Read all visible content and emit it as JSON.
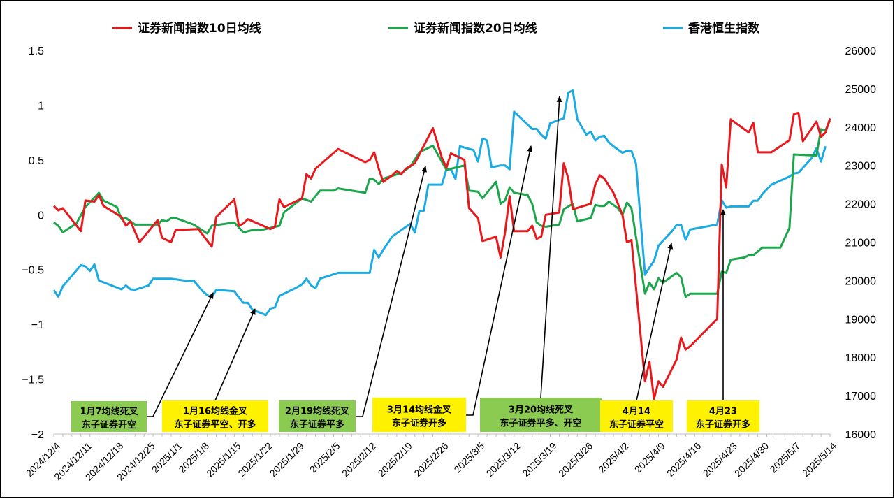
{
  "chart_data": {
    "type": "line",
    "title": "",
    "xlabel": "",
    "ylabel": "",
    "ylim": [
      -2,
      1.5
    ],
    "y2lim": [
      16000,
      26000
    ],
    "y_ticks": [
      "1.5",
      "1",
      "0.5",
      "0",
      "−0.5",
      "−1",
      "−1.5",
      "−2"
    ],
    "y2_ticks": [
      "26000",
      "25000",
      "24000",
      "23000",
      "22000",
      "21000",
      "20000",
      "19000",
      "18000",
      "17000",
      "16000"
    ],
    "x_ticks": [
      "2024/12/4",
      "2024/12/11",
      "2024/12/18",
      "2024/12/25",
      "2025/1/1",
      "2025/1/8",
      "2025/1/15",
      "2025/1/22",
      "2025/1/29",
      "2025/2/5",
      "2025/2/12",
      "2025/2/19",
      "2025/2/26",
      "2025/3/5",
      "2025/3/12",
      "2025/3/19",
      "2025/3/26",
      "2025/4/2",
      "2025/4/9",
      "2025/4/16",
      "2025/4/23",
      "2025/4/30",
      "2025/5/7",
      "2025/5/14"
    ],
    "grid": false,
    "legend_position": "top",
    "series": [
      {
        "name": "证券新闻指数10日均线",
        "axis": "left",
        "color": "#e8191c",
        "points": [
          [
            0,
            0.08
          ],
          [
            1,
            0.04
          ],
          [
            2,
            0.06
          ],
          [
            6,
            -0.15
          ],
          [
            7,
            0.13
          ],
          [
            9,
            0.12
          ],
          [
            10,
            0.18
          ],
          [
            11,
            0.08
          ],
          [
            15,
            -0.02
          ],
          [
            16,
            -0.1
          ],
          [
            17,
            -0.06
          ],
          [
            19,
            -0.25
          ],
          [
            23,
            -0.05
          ],
          [
            24,
            -0.21
          ],
          [
            26,
            -0.25
          ],
          [
            27,
            -0.14
          ],
          [
            32,
            -0.13
          ],
          [
            35,
            -0.29
          ],
          [
            36,
            -0.02
          ],
          [
            40,
            0.14
          ],
          [
            41,
            -0.1
          ],
          [
            42,
            -0.08
          ],
          [
            43,
            -0.04
          ],
          [
            48,
            -0.13
          ],
          [
            49,
            -0.11
          ],
          [
            50,
            0.14
          ],
          [
            51,
            0.07
          ],
          [
            55,
            0.15
          ],
          [
            56,
            0.37
          ],
          [
            57,
            0.33
          ],
          [
            58,
            0.42
          ],
          [
            63,
            0.6
          ],
          [
            69,
            0.48
          ],
          [
            70,
            0.5
          ],
          [
            71,
            0.57
          ],
          [
            72,
            0.42
          ],
          [
            73,
            0.3
          ],
          [
            75,
            0.36
          ],
          [
            76,
            0.4
          ],
          [
            77,
            0.37
          ],
          [
            78,
            0.42
          ],
          [
            80,
            0.47
          ],
          [
            84,
            0.79
          ],
          [
            86,
            0.52
          ],
          [
            87,
            0.43
          ],
          [
            88,
            0.56
          ],
          [
            91,
            0.5
          ],
          [
            92,
            0.06
          ],
          [
            94,
            -0.03
          ],
          [
            95,
            -0.24
          ],
          [
            98,
            -0.2
          ],
          [
            99,
            -0.39
          ],
          [
            100,
            -0.16
          ],
          [
            101,
            0.17
          ],
          [
            102,
            -0.15
          ],
          [
            105,
            -0.15
          ],
          [
            106,
            -0.1
          ],
          [
            107,
            -0.22
          ],
          [
            108,
            -0.2
          ],
          [
            109,
            0
          ],
          [
            112,
            0.02
          ],
          [
            113,
            0.47
          ],
          [
            114,
            0.33
          ],
          [
            115,
            0.05
          ],
          [
            119,
            0.1
          ],
          [
            120,
            0.28
          ],
          [
            121,
            0.36
          ],
          [
            122,
            0.33
          ],
          [
            124,
            0.2
          ],
          [
            126,
            0
          ],
          [
            127,
            -0.25
          ],
          [
            128,
            -0.23
          ],
          [
            131,
            -1.52
          ],
          [
            132,
            -1.34
          ],
          [
            133,
            -1.68
          ],
          [
            134,
            -1.52
          ],
          [
            135,
            -1.57
          ],
          [
            138,
            -1.32
          ],
          [
            139,
            -1.12
          ],
          [
            140,
            -1.23
          ],
          [
            141,
            -1.2
          ],
          [
            147,
            -0.95
          ],
          [
            148,
            0.46
          ],
          [
            149,
            0.25
          ],
          [
            150,
            0.87
          ],
          [
            154,
            0.75
          ],
          [
            155,
            0.84
          ],
          [
            156,
            0.57
          ],
          [
            159,
            0.57
          ],
          [
            163,
            0.68
          ],
          [
            164,
            0.92
          ],
          [
            165,
            0.93
          ],
          [
            166,
            0.67
          ],
          [
            169,
            0.85
          ],
          [
            170,
            0.71
          ],
          [
            171,
            0.75
          ],
          [
            172,
            0.88
          ]
        ]
      },
      {
        "name": "证券新闻指数20日均线",
        "axis": "left",
        "color": "#1ca64c",
        "points": [
          [
            0,
            -0.07
          ],
          [
            1,
            -0.1
          ],
          [
            2,
            -0.16
          ],
          [
            5,
            -0.08
          ],
          [
            7,
            0.07
          ],
          [
            10,
            0.2
          ],
          [
            11,
            0.13
          ],
          [
            14,
            0.07
          ],
          [
            15,
            -0.04
          ],
          [
            16,
            -0.03
          ],
          [
            18,
            -0.09
          ],
          [
            23,
            -0.09
          ],
          [
            24,
            -0.05
          ],
          [
            25,
            -0.06
          ],
          [
            26,
            -0.03
          ],
          [
            27,
            -0.03
          ],
          [
            31,
            -0.09
          ],
          [
            34,
            -0.17
          ],
          [
            35,
            -0.1
          ],
          [
            40,
            -0.07
          ],
          [
            42,
            -0.16
          ],
          [
            44,
            -0.14
          ],
          [
            46,
            -0.14
          ],
          [
            48,
            -0.12
          ],
          [
            50,
            -0.1
          ],
          [
            51,
            0.02
          ],
          [
            55,
            0.15
          ],
          [
            57,
            0.12
          ],
          [
            59,
            0.22
          ],
          [
            62,
            0.22
          ],
          [
            63,
            0.24
          ],
          [
            69,
            0.2
          ],
          [
            70,
            0.33
          ],
          [
            71,
            0.32
          ],
          [
            72,
            0.28
          ],
          [
            73,
            0.33
          ],
          [
            77,
            0.38
          ],
          [
            79,
            0.44
          ],
          [
            81,
            0.57
          ],
          [
            84,
            0.63
          ],
          [
            87,
            0.41
          ],
          [
            91,
            0.45
          ],
          [
            92,
            0.22
          ],
          [
            94,
            0.21
          ],
          [
            95,
            0.15
          ],
          [
            98,
            0.3
          ],
          [
            99,
            0.1
          ],
          [
            100,
            0.13
          ],
          [
            101,
            0.25
          ],
          [
            102,
            0.2
          ],
          [
            105,
            0.18
          ],
          [
            106,
            0.1
          ],
          [
            107,
            -0.07
          ],
          [
            108,
            -0.1
          ],
          [
            109,
            -0.11
          ],
          [
            112,
            -0.09
          ],
          [
            113,
            0.05
          ],
          [
            115,
            0.1
          ],
          [
            116,
            -0.06
          ],
          [
            119,
            -0.03
          ],
          [
            120,
            0.09
          ],
          [
            121,
            0.08
          ],
          [
            122,
            0.08
          ],
          [
            123,
            0.12
          ],
          [
            125,
            0.06
          ],
          [
            126,
            0
          ],
          [
            127,
            0.11
          ],
          [
            128,
            0.06
          ],
          [
            131,
            -0.72
          ],
          [
            132,
            -0.62
          ],
          [
            133,
            -0.68
          ],
          [
            134,
            -0.58
          ],
          [
            135,
            -0.62
          ],
          [
            138,
            -0.53
          ],
          [
            139,
            -0.57
          ],
          [
            140,
            -0.75
          ],
          [
            141,
            -0.72
          ],
          [
            147,
            -0.72
          ],
          [
            148,
            -0.52
          ],
          [
            149,
            -0.53
          ],
          [
            150,
            -0.41
          ],
          [
            153,
            -0.39
          ],
          [
            154,
            -0.37
          ],
          [
            155,
            -0.37
          ],
          [
            157,
            -0.3
          ],
          [
            161,
            -0.3
          ],
          [
            163,
            -0.12
          ],
          [
            164,
            0.55
          ],
          [
            169,
            0.54
          ],
          [
            170,
            0.78
          ],
          [
            171,
            0.77
          ],
          [
            172,
            0.86
          ]
        ]
      },
      {
        "name": "香港恒生指数",
        "axis": "right",
        "color": "#1aabe2",
        "points": [
          [
            0,
            19750
          ],
          [
            1,
            19580
          ],
          [
            2,
            19850
          ],
          [
            6,
            20400
          ],
          [
            7,
            20370
          ],
          [
            8,
            20250
          ],
          [
            9,
            20420
          ],
          [
            10,
            20000
          ],
          [
            15,
            19770
          ],
          [
            16,
            19870
          ],
          [
            17,
            19770
          ],
          [
            18,
            19760
          ],
          [
            21,
            19870
          ],
          [
            22,
            20050
          ],
          [
            26,
            20050
          ],
          [
            30,
            19980
          ],
          [
            31,
            20000
          ],
          [
            33,
            19720
          ],
          [
            34,
            19620
          ],
          [
            35,
            19560
          ],
          [
            36,
            19760
          ],
          [
            40,
            19720
          ],
          [
            41,
            19560
          ],
          [
            42,
            19420
          ],
          [
            43,
            19420
          ],
          [
            44,
            19240
          ],
          [
            47,
            19100
          ],
          [
            48,
            19270
          ],
          [
            49,
            19300
          ],
          [
            50,
            19600
          ],
          [
            53,
            19770
          ],
          [
            54,
            19830
          ],
          [
            55,
            19900
          ],
          [
            56,
            20050
          ],
          [
            57,
            19870
          ],
          [
            58,
            19800
          ],
          [
            59,
            20050
          ],
          [
            63,
            20200
          ],
          [
            70,
            20200
          ],
          [
            71,
            20800
          ],
          [
            72,
            20600
          ],
          [
            73,
            20800
          ],
          [
            75,
            21150
          ],
          [
            79,
            21480
          ],
          [
            80,
            21250
          ],
          [
            81,
            21820
          ],
          [
            82,
            21820
          ],
          [
            83,
            22500
          ],
          [
            86,
            22500
          ],
          [
            87,
            22900
          ],
          [
            88,
            22900
          ],
          [
            89,
            22650
          ],
          [
            90,
            23500
          ],
          [
            93,
            23400
          ],
          [
            94,
            23100
          ],
          [
            95,
            23700
          ],
          [
            96,
            23650
          ],
          [
            97,
            22950
          ],
          [
            99,
            23000
          ],
          [
            100,
            23000
          ],
          [
            101,
            22900
          ],
          [
            102,
            24400
          ],
          [
            106,
            23950
          ],
          [
            107,
            23950
          ],
          [
            108,
            23800
          ],
          [
            109,
            23700
          ],
          [
            110,
            24100
          ],
          [
            113,
            24230
          ],
          [
            114,
            24900
          ],
          [
            115,
            24950
          ],
          [
            116,
            24200
          ],
          [
            118,
            23800
          ],
          [
            119,
            23880
          ],
          [
            120,
            23650
          ],
          [
            121,
            23750
          ],
          [
            122,
            23770
          ],
          [
            123,
            23600
          ],
          [
            124,
            23500
          ],
          [
            126,
            23330
          ],
          [
            127,
            23380
          ],
          [
            128,
            23380
          ],
          [
            129,
            23050
          ],
          [
            131,
            20150
          ],
          [
            132,
            20340
          ],
          [
            133,
            20510
          ],
          [
            134,
            20910
          ],
          [
            137,
            21290
          ],
          [
            138,
            21450
          ],
          [
            139,
            21450
          ],
          [
            140,
            21060
          ],
          [
            141,
            21330
          ],
          [
            147,
            21460
          ],
          [
            148,
            22090
          ],
          [
            149,
            21900
          ],
          [
            150,
            21930
          ],
          [
            154,
            21930
          ],
          [
            155,
            22080
          ],
          [
            156,
            22080
          ],
          [
            157,
            22250
          ],
          [
            159,
            22500
          ],
          [
            163,
            22710
          ],
          [
            164,
            22790
          ],
          [
            165,
            22810
          ],
          [
            168,
            23200
          ],
          [
            169,
            23450
          ],
          [
            170,
            23100
          ],
          [
            171,
            23500
          ]
        ]
      }
    ],
    "annotations": [
      {
        "line1": "1月7均线死叉",
        "line2": "东子证券开空",
        "bg": "#8ccb52"
      },
      {
        "line1": "1月16均线金叉",
        "line2": "东子证券平空、开多",
        "bg": "#fff200"
      },
      {
        "line1": "2月19均线死叉",
        "line2": "东子证券平多",
        "bg": "#8ccb52"
      },
      {
        "line1": "3月14均线金叉",
        "line2": "东子证券开多",
        "bg": "#fff200"
      },
      {
        "line1": "3月20均线死叉",
        "line2": "东子证券平多、开空",
        "bg": "#8ccb52"
      },
      {
        "line1": "4月14",
        "line2": "东子证券平空",
        "bg": "#fff200"
      },
      {
        "line1": "4月23",
        "line2": "东子证券开多",
        "bg": "#fff200"
      }
    ]
  }
}
